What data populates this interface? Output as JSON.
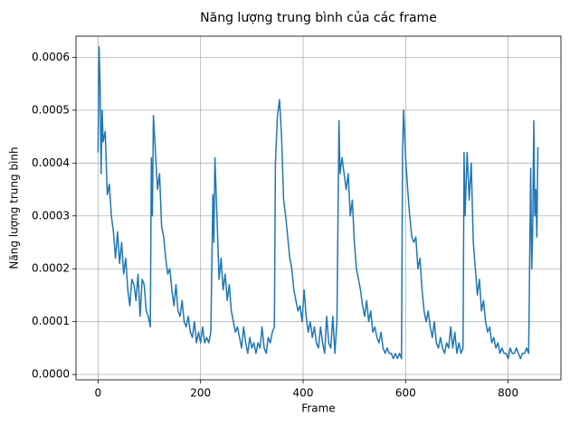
{
  "chart_data": {
    "type": "line",
    "title": "Năng lượng trung bình của các frame",
    "xlabel": "Frame",
    "ylabel": "Năng lượng trung bình",
    "color": "#1f77b4",
    "grid": true,
    "xlim": [
      -43,
      903
    ],
    "ylim": [
      -1e-05,
      0.00064
    ],
    "xticks": [
      0,
      200,
      400,
      600,
      800
    ],
    "yticks": [
      {
        "value": 0,
        "label": "0.0000"
      },
      {
        "value": 0.0001,
        "label": "0.0001"
      },
      {
        "value": 0.0002,
        "label": "0.0002"
      },
      {
        "value": 0.0003,
        "label": "0.0003"
      },
      {
        "value": 0.0004,
        "label": "0.0004"
      },
      {
        "value": 0.0005,
        "label": "0.0005"
      },
      {
        "value": 0.0006,
        "label": "0.0006"
      }
    ],
    "x": [
      0,
      2,
      4,
      6,
      8,
      10,
      14,
      18,
      22,
      26,
      30,
      34,
      38,
      42,
      46,
      50,
      54,
      58,
      62,
      66,
      70,
      74,
      78,
      82,
      86,
      90,
      94,
      98,
      102,
      104,
      106,
      108,
      112,
      116,
      120,
      124,
      128,
      132,
      136,
      140,
      144,
      148,
      152,
      156,
      160,
      164,
      168,
      172,
      176,
      180,
      184,
      188,
      192,
      196,
      200,
      204,
      208,
      212,
      216,
      220,
      224,
      226,
      228,
      232,
      236,
      240,
      244,
      248,
      252,
      256,
      260,
      264,
      268,
      272,
      276,
      280,
      284,
      288,
      292,
      296,
      300,
      304,
      308,
      312,
      316,
      320,
      324,
      328,
      332,
      336,
      340,
      344,
      346,
      350,
      354,
      358,
      362,
      366,
      370,
      374,
      378,
      382,
      386,
      390,
      394,
      398,
      402,
      406,
      410,
      414,
      418,
      422,
      426,
      430,
      434,
      438,
      442,
      446,
      450,
      454,
      458,
      462,
      466,
      470,
      472,
      476,
      480,
      484,
      488,
      492,
      496,
      500,
      504,
      508,
      512,
      516,
      520,
      524,
      528,
      532,
      536,
      540,
      544,
      548,
      552,
      556,
      560,
      564,
      568,
      572,
      576,
      580,
      584,
      588,
      592,
      594,
      596,
      600,
      604,
      608,
      612,
      616,
      620,
      624,
      628,
      632,
      636,
      640,
      644,
      648,
      652,
      656,
      660,
      664,
      668,
      672,
      676,
      680,
      684,
      688,
      692,
      696,
      700,
      704,
      708,
      712,
      714,
      716,
      720,
      724,
      728,
      732,
      736,
      740,
      744,
      748,
      752,
      756,
      760,
      764,
      768,
      772,
      776,
      780,
      784,
      788,
      792,
      796,
      800,
      804,
      808,
      812,
      816,
      820,
      824,
      828,
      832,
      836,
      840,
      844,
      846,
      848,
      850,
      852,
      854,
      856,
      858
    ],
    "values": [
      0.00042,
      0.00062,
      0.00055,
      0.00038,
      0.0005,
      0.00044,
      0.00046,
      0.00034,
      0.00036,
      0.0003,
      0.00027,
      0.00022,
      0.00027,
      0.00021,
      0.00025,
      0.00019,
      0.00022,
      0.00016,
      0.00013,
      0.00018,
      0.00017,
      0.00014,
      0.00019,
      0.00011,
      0.00018,
      0.00017,
      0.00012,
      0.00011,
      9e-05,
      0.00041,
      0.0003,
      0.00049,
      0.00042,
      0.00035,
      0.00038,
      0.00028,
      0.00026,
      0.00022,
      0.00019,
      0.0002,
      0.00016,
      0.00013,
      0.00017,
      0.00012,
      0.00011,
      0.00014,
      0.0001,
      9e-05,
      0.00011,
      8e-05,
      7e-05,
      0.0001,
      6e-05,
      8e-05,
      6e-05,
      9e-05,
      6e-05,
      7e-05,
      6e-05,
      8e-05,
      0.00034,
      0.00025,
      0.00041,
      0.0003,
      0.00018,
      0.00022,
      0.00016,
      0.00019,
      0.00014,
      0.00017,
      0.00012,
      0.0001,
      8e-05,
      9e-05,
      7e-05,
      5e-05,
      9e-05,
      6e-05,
      4e-05,
      7e-05,
      5e-05,
      6e-05,
      4e-05,
      6e-05,
      5e-05,
      9e-05,
      5e-05,
      4e-05,
      7e-05,
      6e-05,
      8e-05,
      9e-05,
      0.0004,
      0.00049,
      0.00052,
      0.00045,
      0.00033,
      0.0003,
      0.00026,
      0.00022,
      0.0002,
      0.00016,
      0.00014,
      0.00012,
      0.00013,
      0.0001,
      0.00016,
      0.00011,
      8e-05,
      0.0001,
      7e-05,
      9e-05,
      6e-05,
      5e-05,
      9e-05,
      6e-05,
      4e-05,
      0.00011,
      6e-05,
      5e-05,
      0.00011,
      4e-05,
      0.0001,
      0.00048,
      0.00038,
      0.00041,
      0.00038,
      0.00035,
      0.00038,
      0.0003,
      0.00033,
      0.00025,
      0.0002,
      0.00018,
      0.00016,
      0.00013,
      0.00011,
      0.00014,
      0.0001,
      0.00012,
      8e-05,
      9e-05,
      7e-05,
      6e-05,
      8e-05,
      5e-05,
      4e-05,
      5e-05,
      4e-05,
      4e-05,
      3e-05,
      4e-05,
      3e-05,
      4e-05,
      3e-05,
      0.00042,
      0.0005,
      0.00041,
      0.00035,
      0.0003,
      0.00026,
      0.00025,
      0.00026,
      0.0002,
      0.00022,
      0.00016,
      0.00012,
      0.0001,
      0.00012,
      9e-05,
      7e-05,
      0.0001,
      6e-05,
      5e-05,
      7e-05,
      5e-05,
      4e-05,
      6e-05,
      5e-05,
      9e-05,
      5e-05,
      8e-05,
      4e-05,
      6e-05,
      4e-05,
      5e-05,
      0.00042,
      0.0003,
      0.00042,
      0.00033,
      0.0004,
      0.00025,
      0.0002,
      0.00015,
      0.00018,
      0.00012,
      0.00014,
      0.0001,
      8e-05,
      9e-05,
      6e-05,
      7e-05,
      5e-05,
      6e-05,
      4e-05,
      5e-05,
      4e-05,
      4e-05,
      3e-05,
      5e-05,
      4e-05,
      4e-05,
      5e-05,
      4e-05,
      3e-05,
      4e-05,
      4e-05,
      5e-05,
      4e-05,
      0.00039,
      0.0002,
      0.00028,
      0.00048,
      0.0003,
      0.00035,
      0.00026,
      0.00043
    ]
  }
}
